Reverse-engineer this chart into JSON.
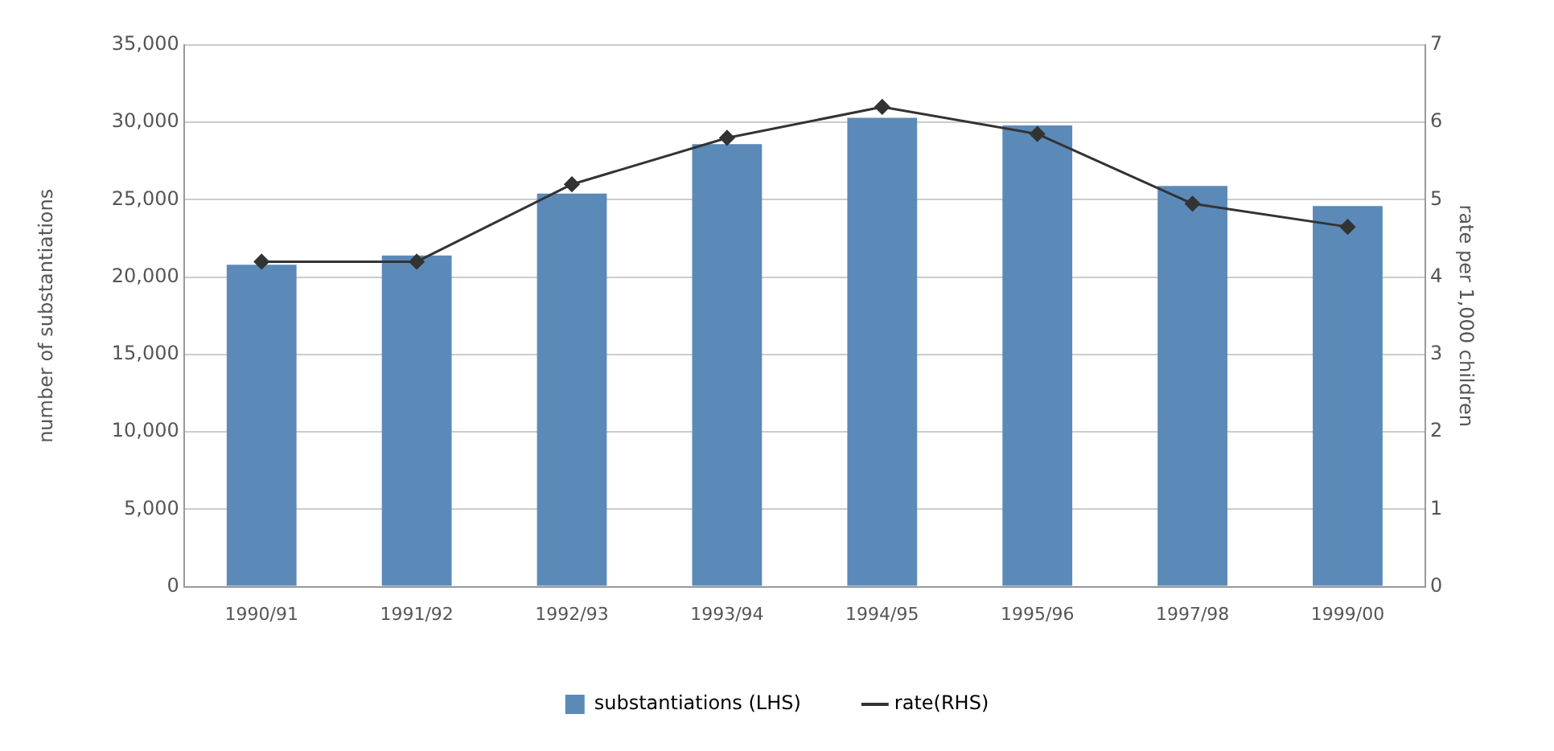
{
  "chart_data": {
    "type": "bar",
    "ylabel": "number of substantiations",
    "y2label": "rate per 1,000 children",
    "categories": [
      "1990/91",
      "1991/92",
      "1992/93",
      "1993/94",
      "1994/95",
      "1995/96",
      "1997/98",
      "1999/00"
    ],
    "series": [
      {
        "name": "substantiations (LHS)",
        "color": "#5b8ab8",
        "values": [
          20800,
          21400,
          25400,
          28600,
          30300,
          29800,
          25900,
          24600
        ]
      },
      {
        "name": "rate(RHS)",
        "type": "line",
        "axis": "y2",
        "color": "#333333",
        "values": [
          4.2,
          4.2,
          5.2,
          5.8,
          6.2,
          5.85,
          4.95,
          4.65
        ]
      }
    ],
    "ylim": [
      0,
      35000
    ],
    "yticks": [
      {
        "value": 0,
        "label": "0"
      },
      {
        "value": 5000,
        "label": "5,000"
      },
      {
        "value": 10000,
        "label": "10,000"
      },
      {
        "value": 15000,
        "label": "15,000"
      },
      {
        "value": 20000,
        "label": "20,000"
      },
      {
        "value": 25000,
        "label": "25,000"
      },
      {
        "value": 30000,
        "label": "30,000"
      },
      {
        "value": 35000,
        "label": "35,000"
      }
    ],
    "y2lim": [
      0,
      7
    ],
    "y2ticks": [
      0,
      1,
      2,
      3,
      4,
      5,
      6,
      7
    ],
    "grid": "y",
    "legend": "bottom",
    "marker": "diamond",
    "line_style": "solid"
  }
}
